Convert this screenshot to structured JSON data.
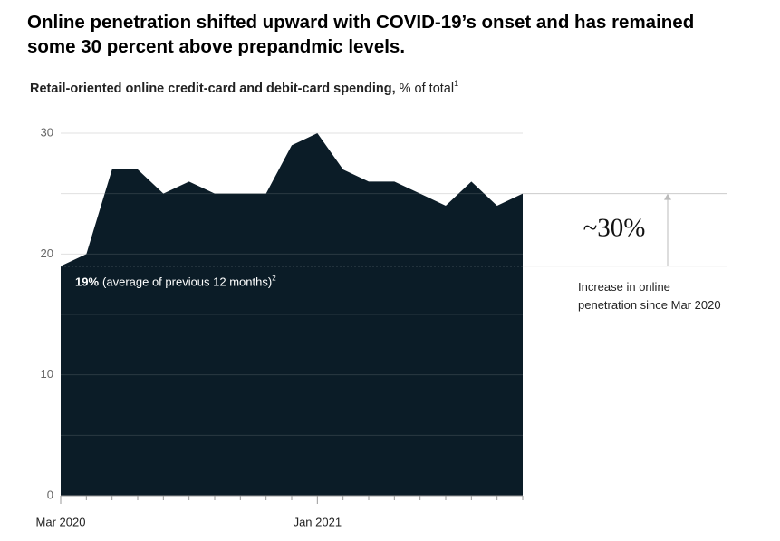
{
  "chart_data": {
    "type": "area",
    "title": "Online penetration shifted upward with COVID-19’s onset and has remained some 30 percent above prepandmic levels.",
    "subtitle_bold": "Retail-oriented online credit-card and debit-card spending,",
    "subtitle_unit": "% of total",
    "subtitle_footnote": "1",
    "categories": [
      "Mar 2020",
      null,
      null,
      null,
      null,
      null,
      null,
      null,
      null,
      null,
      "Jan 2021",
      null,
      null,
      null,
      null,
      null,
      null,
      null,
      null
    ],
    "values": [
      19,
      20,
      27,
      27,
      25,
      26,
      25,
      25,
      25,
      29,
      30,
      27,
      26,
      26,
      25,
      24,
      26,
      24,
      25
    ],
    "color": "#0b1c27",
    "ylim": [
      0,
      30
    ],
    "yticks": [
      0,
      10,
      20,
      30
    ],
    "minor_yticks": [
      5,
      15,
      25
    ],
    "grid": true,
    "reference_value": 19,
    "reference_label": "19%",
    "reference_note": "(average of previous 12 months)",
    "reference_footnote": "2",
    "annotation_value": "~30%",
    "annotation_text": "Increase in online penetration since Mar 2020"
  }
}
